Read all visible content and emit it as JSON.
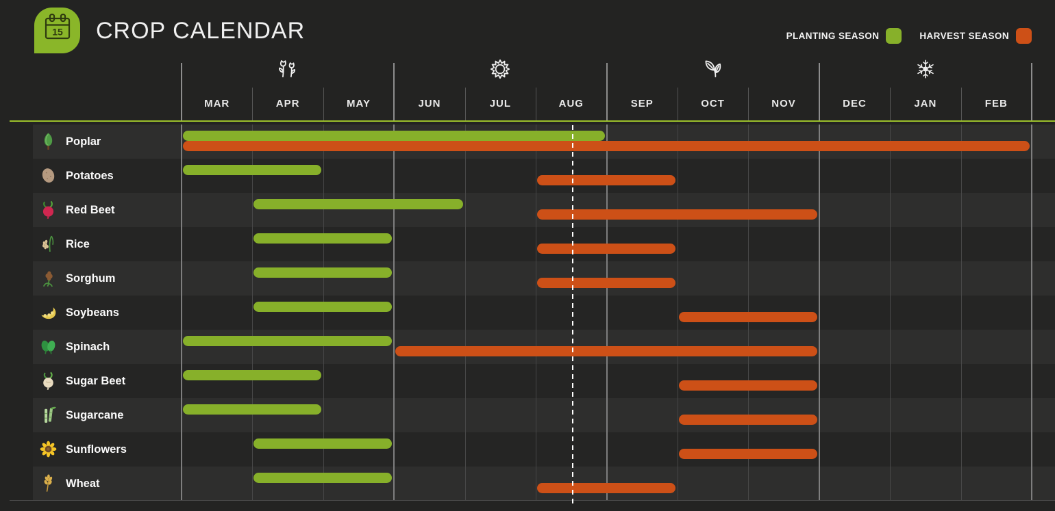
{
  "header": {
    "title": "CROP CALENDAR",
    "logo_day": "15",
    "legend": [
      {
        "key": "planting",
        "label": "PLANTING SEASON",
        "color": "#87b02a"
      },
      {
        "key": "harvest",
        "label": "HARVEST SEASON",
        "color": "#cd5017"
      }
    ]
  },
  "timeline": {
    "seasons": [
      {
        "name": "spring",
        "icon": "spring-flowers-icon",
        "center_month": "APR"
      },
      {
        "name": "summer",
        "icon": "summer-sun-icon",
        "center_month": "JUL"
      },
      {
        "name": "autumn",
        "icon": "autumn-leaves-icon",
        "center_month": "OCT"
      },
      {
        "name": "winter",
        "icon": "winter-snowflake-icon",
        "center_month": "JAN"
      }
    ]
  },
  "chart_data": {
    "type": "gantt",
    "title": "CROP CALENDAR",
    "months": [
      "MAR",
      "APR",
      "MAY",
      "JUN",
      "JUL",
      "AUG",
      "SEP",
      "OCT",
      "NOV",
      "DEC",
      "JAN",
      "FEB"
    ],
    "unit": "inclusive month ranges",
    "season_boundaries_every": 3,
    "today_marker": {
      "month": "AUG",
      "fraction": 0.52
    },
    "rows": [
      {
        "crop": "Poplar",
        "icon": "poplar-tree-icon",
        "planting": {
          "start": "MAR",
          "end": "AUG"
        },
        "harvest": {
          "start": "MAR",
          "end": "FEB"
        }
      },
      {
        "crop": "Potatoes",
        "icon": "potato-icon",
        "planting": {
          "start": "MAR",
          "end": "APR"
        },
        "harvest": {
          "start": "AUG",
          "end": "SEP"
        }
      },
      {
        "crop": "Red Beet",
        "icon": "red-beet-icon",
        "planting": {
          "start": "APR",
          "end": "JUN"
        },
        "harvest": {
          "start": "AUG",
          "end": "NOV"
        }
      },
      {
        "crop": "Rice",
        "icon": "rice-plant-icon",
        "planting": {
          "start": "APR",
          "end": "MAY"
        },
        "harvest": {
          "start": "AUG",
          "end": "SEP"
        }
      },
      {
        "crop": "Sorghum",
        "icon": "sorghum-icon",
        "planting": {
          "start": "APR",
          "end": "MAY"
        },
        "harvest": {
          "start": "AUG",
          "end": "SEP"
        }
      },
      {
        "crop": "Soybeans",
        "icon": "soybeans-icon",
        "planting": {
          "start": "APR",
          "end": "MAY"
        },
        "harvest": {
          "start": "OCT",
          "end": "NOV"
        }
      },
      {
        "crop": "Spinach",
        "icon": "spinach-icon",
        "planting": {
          "start": "MAR",
          "end": "MAY"
        },
        "harvest": {
          "start": "JUN",
          "end": "NOV"
        }
      },
      {
        "crop": "Sugar Beet",
        "icon": "sugar-beet-icon",
        "planting": {
          "start": "MAR",
          "end": "APR"
        },
        "harvest": {
          "start": "OCT",
          "end": "NOV"
        }
      },
      {
        "crop": "Sugarcane",
        "icon": "sugarcane-icon",
        "planting": {
          "start": "MAR",
          "end": "APR"
        },
        "harvest": {
          "start": "OCT",
          "end": "NOV"
        }
      },
      {
        "crop": "Sunflowers",
        "icon": "sunflower-icon",
        "planting": {
          "start": "APR",
          "end": "MAY"
        },
        "harvest": {
          "start": "OCT",
          "end": "NOV"
        }
      },
      {
        "crop": "Wheat",
        "icon": "wheat-icon",
        "planting": {
          "start": "APR",
          "end": "MAY"
        },
        "harvest": {
          "start": "AUG",
          "end": "SEP"
        }
      }
    ]
  }
}
